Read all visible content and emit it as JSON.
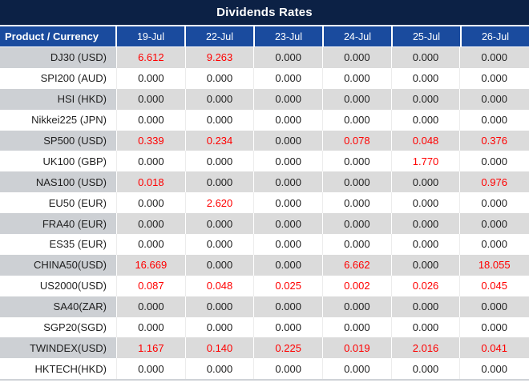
{
  "title": "Dividends Rates",
  "colors": {
    "title_bg": "#0C2145",
    "header_bg": "#1A4B9E",
    "product_stripe": "#CDD0D4",
    "value_stripe": "#DBDBDB",
    "red": "#FF0000",
    "text": "#212121",
    "border": "#CFD3D7"
  },
  "table": {
    "header": [
      "Product / Currency",
      "19-Jul",
      "22-Jul",
      "23-Jul",
      "24-Jul",
      "25-Jul",
      "26-Jul"
    ],
    "rows": [
      {
        "product": "DJ30 (USD)",
        "values": [
          "6.612",
          "9.263",
          "0.000",
          "0.000",
          "0.000",
          "0.000"
        ]
      },
      {
        "product": "SPI200 (AUD)",
        "values": [
          "0.000",
          "0.000",
          "0.000",
          "0.000",
          "0.000",
          "0.000"
        ]
      },
      {
        "product": "HSI (HKD)",
        "values": [
          "0.000",
          "0.000",
          "0.000",
          "0.000",
          "0.000",
          "0.000"
        ]
      },
      {
        "product": "Nikkei225 (JPN)",
        "values": [
          "0.000",
          "0.000",
          "0.000",
          "0.000",
          "0.000",
          "0.000"
        ]
      },
      {
        "product": "SP500 (USD)",
        "values": [
          "0.339",
          "0.234",
          "0.000",
          "0.078",
          "0.048",
          "0.376"
        ]
      },
      {
        "product": "UK100 (GBP)",
        "values": [
          "0.000",
          "0.000",
          "0.000",
          "0.000",
          "1.770",
          "0.000"
        ]
      },
      {
        "product": "NAS100 (USD)",
        "values": [
          "0.018",
          "0.000",
          "0.000",
          "0.000",
          "0.000",
          "0.976"
        ]
      },
      {
        "product": "EU50 (EUR)",
        "values": [
          "0.000",
          "2.620",
          "0.000",
          "0.000",
          "0.000",
          "0.000"
        ]
      },
      {
        "product": "FRA40 (EUR)",
        "values": [
          "0.000",
          "0.000",
          "0.000",
          "0.000",
          "0.000",
          "0.000"
        ]
      },
      {
        "product": "ES35 (EUR)",
        "values": [
          "0.000",
          "0.000",
          "0.000",
          "0.000",
          "0.000",
          "0.000"
        ]
      },
      {
        "product": "CHINA50(USD)",
        "values": [
          "16.669",
          "0.000",
          "0.000",
          "6.662",
          "0.000",
          "18.055"
        ]
      },
      {
        "product": "US2000(USD)",
        "values": [
          "0.087",
          "0.048",
          "0.025",
          "0.002",
          "0.026",
          "0.045"
        ]
      },
      {
        "product": "SA40(ZAR)",
        "values": [
          "0.000",
          "0.000",
          "0.000",
          "0.000",
          "0.000",
          "0.000"
        ]
      },
      {
        "product": "SGP20(SGD)",
        "values": [
          "0.000",
          "0.000",
          "0.000",
          "0.000",
          "0.000",
          "0.000"
        ]
      },
      {
        "product": "TWINDEX(USD)",
        "values": [
          "1.167",
          "0.140",
          "0.225",
          "0.019",
          "2.016",
          "0.041"
        ]
      },
      {
        "product": "HKTECH(HKD)",
        "values": [
          "0.000",
          "0.000",
          "0.000",
          "0.000",
          "0.000",
          "0.000"
        ]
      }
    ]
  },
  "chart_data": {
    "type": "table",
    "title": "Dividends Rates",
    "columns": [
      "Product / Currency",
      "19-Jul",
      "22-Jul",
      "23-Jul",
      "24-Jul",
      "25-Jul",
      "26-Jul"
    ],
    "rows": [
      [
        "DJ30 (USD)",
        6.612,
        9.263,
        0.0,
        0.0,
        0.0,
        0.0
      ],
      [
        "SPI200 (AUD)",
        0.0,
        0.0,
        0.0,
        0.0,
        0.0,
        0.0
      ],
      [
        "HSI (HKD)",
        0.0,
        0.0,
        0.0,
        0.0,
        0.0,
        0.0
      ],
      [
        "Nikkei225 (JPN)",
        0.0,
        0.0,
        0.0,
        0.0,
        0.0,
        0.0
      ],
      [
        "SP500 (USD)",
        0.339,
        0.234,
        0.0,
        0.078,
        0.048,
        0.376
      ],
      [
        "UK100 (GBP)",
        0.0,
        0.0,
        0.0,
        0.0,
        1.77,
        0.0
      ],
      [
        "NAS100 (USD)",
        0.018,
        0.0,
        0.0,
        0.0,
        0.0,
        0.976
      ],
      [
        "EU50 (EUR)",
        0.0,
        2.62,
        0.0,
        0.0,
        0.0,
        0.0
      ],
      [
        "FRA40 (EUR)",
        0.0,
        0.0,
        0.0,
        0.0,
        0.0,
        0.0
      ],
      [
        "ES35 (EUR)",
        0.0,
        0.0,
        0.0,
        0.0,
        0.0,
        0.0
      ],
      [
        "CHINA50(USD)",
        16.669,
        0.0,
        0.0,
        6.662,
        0.0,
        18.055
      ],
      [
        "US2000(USD)",
        0.087,
        0.048,
        0.025,
        0.002,
        0.026,
        0.045
      ],
      [
        "SA40(ZAR)",
        0.0,
        0.0,
        0.0,
        0.0,
        0.0,
        0.0
      ],
      [
        "SGP20(SGD)",
        0.0,
        0.0,
        0.0,
        0.0,
        0.0,
        0.0
      ],
      [
        "TWINDEX(USD)",
        1.167,
        0.14,
        0.225,
        0.019,
        2.016,
        0.041
      ],
      [
        "HKTECH(HKD)",
        0.0,
        0.0,
        0.0,
        0.0,
        0.0,
        0.0
      ]
    ],
    "style_note": "non-zero values rendered in red, zeros in black; rows zebra-striped gray/white"
  }
}
